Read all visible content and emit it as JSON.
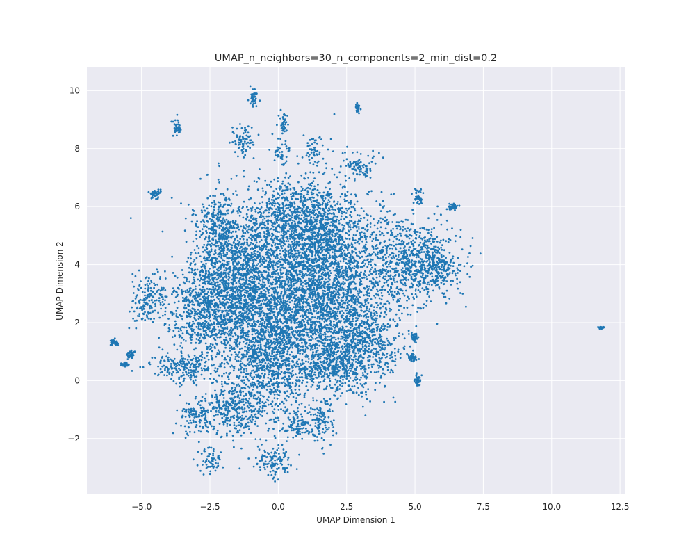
{
  "chart_data": {
    "type": "scatter",
    "title": "UMAP_n_neighbors=30_n_components=2_min_dist=0.2",
    "xlabel": "UMAP Dimension 1",
    "ylabel": "UMAP Dimension 2",
    "xlim": [
      -7.0,
      12.7
    ],
    "ylim": [
      -3.9,
      10.8
    ],
    "xticks": [
      -5.0,
      -2.5,
      0.0,
      2.5,
      5.0,
      7.5,
      10.0,
      12.5
    ],
    "xtick_labels": [
      "−5.0",
      "−2.5",
      "0.0",
      "2.5",
      "5.0",
      "7.5",
      "10.0",
      "12.5"
    ],
    "yticks": [
      -2,
      0,
      2,
      4,
      6,
      8,
      10
    ],
    "ytick_labels": [
      "−2",
      "0",
      "2",
      "4",
      "6",
      "8",
      "10"
    ],
    "grid": true,
    "legend": "none",
    "colors": {
      "point": "#1f77b4",
      "plot_background": "#eaeaf2",
      "grid": "#ffffff",
      "text": "#262626"
    },
    "clusters": [
      {
        "center": [
          0.3,
          3.3
        ],
        "spread": [
          1.9,
          2.1
        ],
        "shape": "blob"
      },
      {
        "center": [
          1.8,
          3.8
        ],
        "spread": [
          1.1,
          1.9
        ],
        "shape": "blob"
      },
      {
        "center": [
          -1.5,
          3.6
        ],
        "spread": [
          1.0,
          1.5
        ],
        "shape": "blob"
      },
      {
        "center": [
          0.7,
          5.6
        ],
        "spread": [
          1.1,
          0.9
        ],
        "shape": "blob"
      },
      {
        "center": [
          -0.3,
          1.0
        ],
        "spread": [
          1.3,
          1.6
        ],
        "shape": "blob"
      },
      {
        "center": [
          4.6,
          4.1
        ],
        "spread": [
          1.2,
          1.0
        ],
        "shape": "blob"
      },
      {
        "center": [
          5.8,
          3.9
        ],
        "spread": [
          0.55,
          0.45
        ],
        "shape": "blob"
      },
      {
        "center": [
          3.1,
          1.4
        ],
        "spread": [
          0.9,
          1.1
        ],
        "shape": "blob"
      },
      {
        "center": [
          2.0,
          0.6
        ],
        "spread": [
          0.8,
          0.6
        ],
        "shape": "blob"
      },
      {
        "center": [
          -2.8,
          2.5
        ],
        "spread": [
          0.8,
          1.0
        ],
        "shape": "blob"
      },
      {
        "center": [
          -2.2,
          5.2
        ],
        "spread": [
          0.5,
          0.8
        ],
        "shape": "blob"
      },
      {
        "center": [
          -4.7,
          2.8
        ],
        "spread": [
          0.45,
          0.55
        ],
        "shape": "blob"
      },
      {
        "center": [
          -2.5,
          -2.8
        ],
        "spread": [
          0.3,
          0.3
        ],
        "shape": "blob"
      },
      {
        "center": [
          -0.2,
          -2.8
        ],
        "spread": [
          0.45,
          0.35
        ],
        "shape": "blob"
      },
      {
        "center": [
          -1.3,
          8.3
        ],
        "spread": [
          0.3,
          0.35
        ],
        "shape": "blob"
      },
      {
        "center": [
          -0.9,
          9.8
        ],
        "spread": [
          0.1,
          0.25
        ],
        "shape": "blob"
      },
      {
        "center": [
          0.2,
          8.9
        ],
        "spread": [
          0.12,
          0.3
        ],
        "shape": "blob"
      },
      {
        "center": [
          0.1,
          7.9
        ],
        "spread": [
          0.2,
          0.3
        ],
        "shape": "blob"
      },
      {
        "center": [
          1.3,
          8.0
        ],
        "spread": [
          0.2,
          0.3
        ],
        "shape": "blob"
      },
      {
        "center": [
          -3.7,
          8.7
        ],
        "spread": [
          0.1,
          0.2
        ],
        "shape": "blob"
      },
      {
        "center": [
          2.9,
          9.4
        ],
        "spread": [
          0.05,
          0.1
        ],
        "shape": "blob"
      },
      {
        "center": [
          -4.5,
          6.45
        ],
        "spread": [
          0.12,
          0.1
        ],
        "shape": "blob"
      },
      {
        "center": [
          -6.0,
          1.3
        ],
        "spread": [
          0.1,
          0.08
        ],
        "shape": "blob"
      },
      {
        "center": [
          -5.4,
          0.9
        ],
        "spread": [
          0.1,
          0.1
        ],
        "shape": "blob"
      },
      {
        "center": [
          -5.6,
          0.55
        ],
        "spread": [
          0.1,
          0.05
        ],
        "shape": "blob"
      },
      {
        "center": [
          6.4,
          6.0
        ],
        "spread": [
          0.15,
          0.08
        ],
        "shape": "blob"
      },
      {
        "center": [
          5.1,
          6.3
        ],
        "spread": [
          0.1,
          0.2
        ],
        "shape": "blob"
      },
      {
        "center": [
          5.1,
          0.0
        ],
        "spread": [
          0.07,
          0.12
        ],
        "shape": "blob"
      },
      {
        "center": [
          5.0,
          1.5
        ],
        "spread": [
          0.07,
          0.1
        ],
        "shape": "blob"
      },
      {
        "center": [
          4.9,
          0.8
        ],
        "spread": [
          0.1,
          0.1
        ],
        "shape": "blob"
      },
      {
        "center": [
          11.8,
          1.82
        ],
        "spread": [
          0.06,
          0.02
        ],
        "shape": "blob"
      },
      {
        "center": [
          3.0,
          7.4
        ],
        "spread": [
          0.35,
          0.3
        ],
        "shape": "blob"
      },
      {
        "center": [
          -3.5,
          0.5
        ],
        "spread": [
          0.9,
          0.35
        ],
        "shape": "blob"
      },
      {
        "center": [
          -1.6,
          -1.0
        ],
        "spread": [
          0.7,
          0.6
        ],
        "shape": "blob"
      },
      {
        "center": [
          0.7,
          -1.6
        ],
        "spread": [
          0.4,
          0.3
        ],
        "shape": "blob"
      },
      {
        "center": [
          1.6,
          -1.3
        ],
        "spread": [
          0.3,
          0.5
        ],
        "shape": "blob"
      },
      {
        "center": [
          -3.0,
          -1.3
        ],
        "spread": [
          0.4,
          0.4
        ],
        "shape": "blob"
      }
    ]
  }
}
